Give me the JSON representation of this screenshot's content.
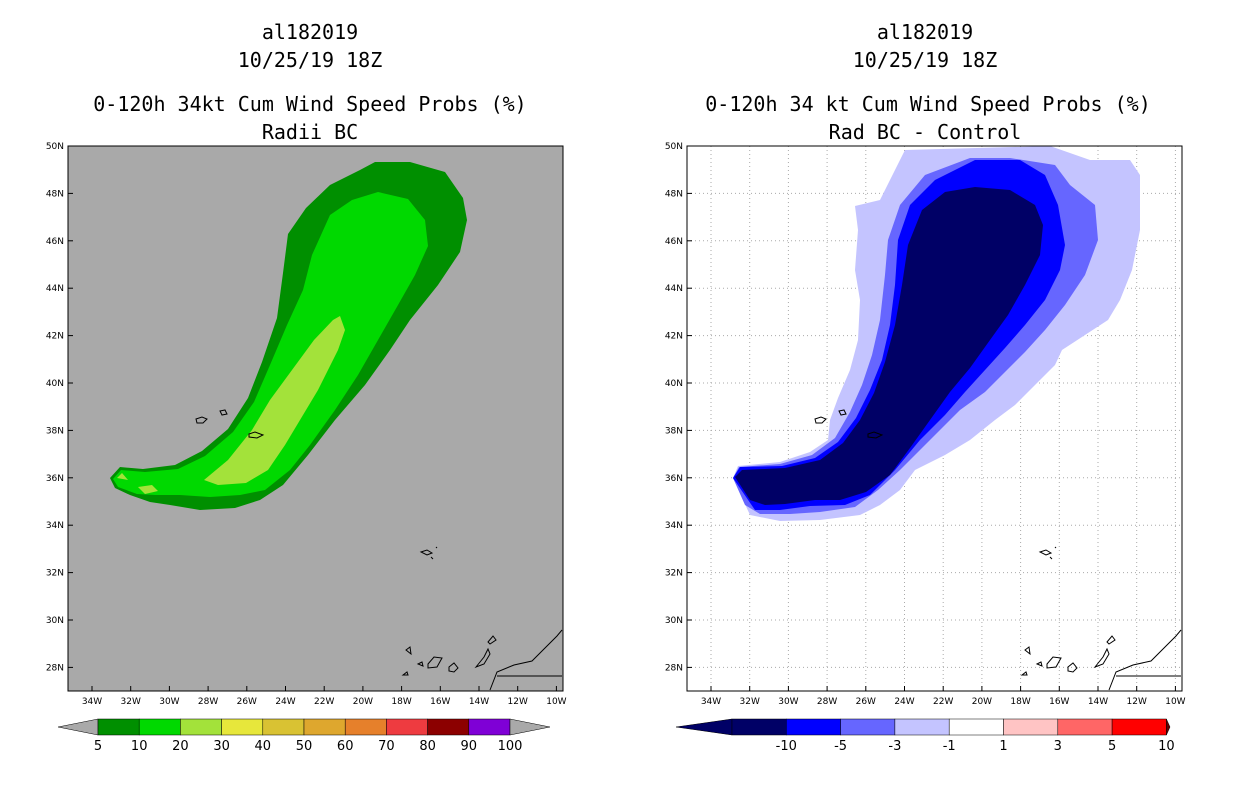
{
  "panels": [
    {
      "id": "left",
      "storm_id": "al182019",
      "datetime": "10/25/19 18Z",
      "title": "0-120h 34kt Cum Wind Speed Probs (%)",
      "subtitle": "Radii BC",
      "background": "#a9a9a9",
      "colorbar": {
        "colors": [
          "#008f00",
          "#00d900",
          "#a3e23a",
          "#e7e73b",
          "#d9c233",
          "#dea72e",
          "#e6802b",
          "#ee3b40",
          "#8c0000",
          "#7f00d6"
        ],
        "labels": [
          "5",
          "10",
          "20",
          "30",
          "40",
          "50",
          "60",
          "70",
          "80",
          "90",
          "100"
        ],
        "end_color": "#a9a9a9"
      }
    },
    {
      "id": "right",
      "storm_id": "al182019",
      "datetime": "10/25/19 18Z",
      "title": "0-120h 34 kt Cum Wind Speed Probs (%)",
      "subtitle": "Rad BC - Control",
      "background": "#ffffff",
      "colorbar": {
        "colors": [
          "#000066",
          "#0000ff",
          "#6666ff",
          "#c4c4ff",
          "#ffffff",
          "#ffc4c4",
          "#ff6666",
          "#ff0000"
        ],
        "labels": [
          "-10",
          "-5",
          "-3",
          "-1",
          "1",
          "3",
          "5",
          "10"
        ],
        "left_end_color": "#000066",
        "right_end_color": "#660000"
      }
    }
  ],
  "axes": {
    "lat_labels": [
      "50N",
      "48N",
      "46N",
      "44N",
      "42N",
      "40N",
      "38N",
      "36N",
      "34N",
      "32N",
      "30N",
      "28N"
    ],
    "lon_labels": [
      "34W",
      "32W",
      "30W",
      "28W",
      "26W",
      "24W",
      "22W",
      "20W",
      "18W",
      "16W",
      "14W",
      "12W",
      "10W"
    ]
  },
  "colors": {
    "coast": "#000000",
    "grid": "#aaaaaa"
  }
}
